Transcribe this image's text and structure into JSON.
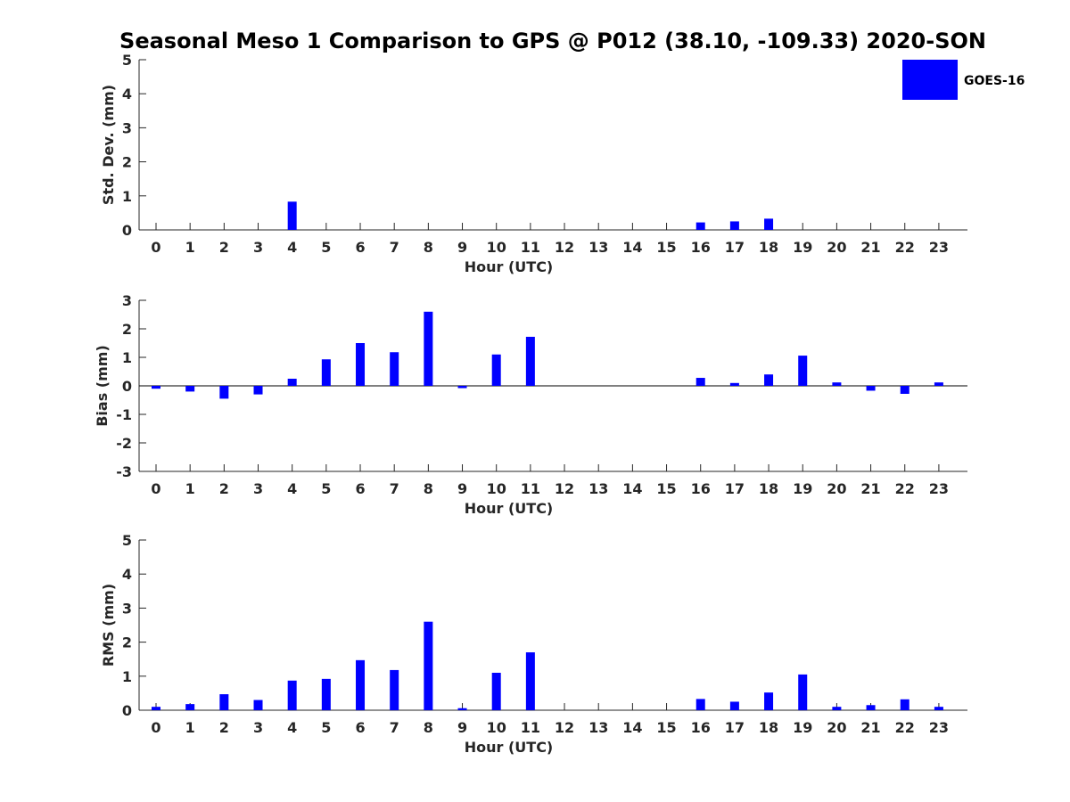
{
  "title": "Seasonal Meso 1 Comparison to GPS @ P012 (38.10, -109.33) 2020-SON",
  "legend": {
    "label": "GOES-16",
    "color": "#0000ff"
  },
  "colors": {
    "bar": "#0000ff",
    "axis": "#262626"
  },
  "chart_data": [
    {
      "type": "bar",
      "title": "Seasonal Meso 1 Comparison to GPS @ P012 (38.10, -109.33) 2020-SON",
      "xlabel": "Hour (UTC)",
      "ylabel": "Std. Dev. (mm)",
      "ylim": [
        0,
        5
      ],
      "yticks": [
        0,
        1,
        2,
        3,
        4,
        5
      ],
      "categories": [
        "0",
        "1",
        "2",
        "3",
        "4",
        "5",
        "6",
        "7",
        "8",
        "9",
        "10",
        "11",
        "12",
        "13",
        "14",
        "15",
        "16",
        "17",
        "18",
        "19",
        "20",
        "21",
        "22",
        "23"
      ],
      "series": [
        {
          "name": "GOES-16",
          "values": [
            0,
            0,
            0,
            0,
            0.83,
            0,
            0,
            0,
            0,
            0,
            0,
            0,
            0,
            0,
            0,
            0,
            0.22,
            0.25,
            0.33,
            0,
            0,
            0,
            0,
            0
          ]
        }
      ],
      "zero_line": false
    },
    {
      "type": "bar",
      "xlabel": "Hour (UTC)",
      "ylabel": "Bias (mm)",
      "ylim": [
        -3,
        3
      ],
      "yticks": [
        -3,
        -2,
        -1,
        0,
        1,
        2,
        3
      ],
      "categories": [
        "0",
        "1",
        "2",
        "3",
        "4",
        "5",
        "6",
        "7",
        "8",
        "9",
        "10",
        "11",
        "12",
        "13",
        "14",
        "15",
        "16",
        "17",
        "18",
        "19",
        "20",
        "21",
        "22",
        "23"
      ],
      "series": [
        {
          "name": "GOES-16",
          "values": [
            -0.1,
            -0.2,
            -0.45,
            -0.3,
            0.25,
            0.93,
            1.5,
            1.18,
            2.6,
            -0.08,
            1.1,
            1.72,
            0,
            0,
            0,
            0,
            0.28,
            0.1,
            0.4,
            1.06,
            0.12,
            -0.17,
            -0.28,
            0.12
          ]
        }
      ],
      "zero_line": true
    },
    {
      "type": "bar",
      "xlabel": "Hour (UTC)",
      "ylabel": "RMS (mm)",
      "ylim": [
        0,
        5
      ],
      "yticks": [
        0,
        1,
        2,
        3,
        4,
        5
      ],
      "categories": [
        "0",
        "1",
        "2",
        "3",
        "4",
        "5",
        "6",
        "7",
        "8",
        "9",
        "10",
        "11",
        "12",
        "13",
        "14",
        "15",
        "16",
        "17",
        "18",
        "19",
        "20",
        "21",
        "22",
        "23"
      ],
      "series": [
        {
          "name": "GOES-16",
          "values": [
            0.1,
            0.18,
            0.47,
            0.3,
            0.87,
            0.92,
            1.47,
            1.18,
            2.6,
            0.06,
            1.1,
            1.7,
            0,
            0,
            0,
            0,
            0.33,
            0.25,
            0.52,
            1.05,
            0.1,
            0.15,
            0.32,
            0.1
          ]
        }
      ],
      "zero_line": false
    }
  ]
}
